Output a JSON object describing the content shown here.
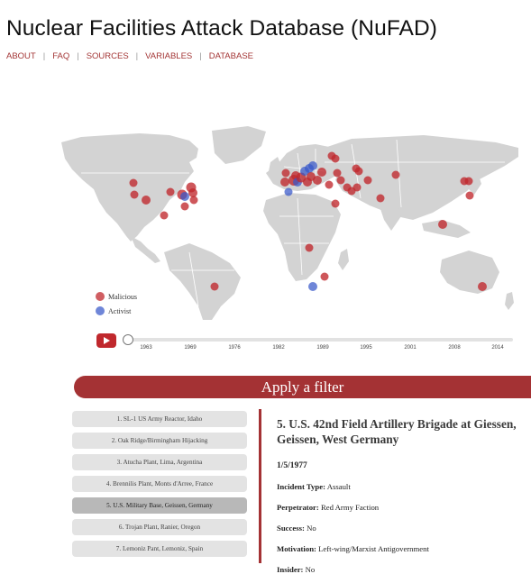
{
  "page": {
    "title": "Nuclear Facilities Attack Database (NuFAD)"
  },
  "nav": [
    "ABOUT",
    "FAQ",
    "SOURCES",
    "VARIABLES",
    "DATABASE"
  ],
  "legend": {
    "malicious": "Malicious",
    "activist": "Activist"
  },
  "colors": {
    "malicious": "#c0282d",
    "activist": "#3858c9",
    "accent": "#a43234"
  },
  "timeline": {
    "years": [
      "1963",
      "1969",
      "1976",
      "1982",
      "1989",
      "1995",
      "2001",
      "2008",
      "2014"
    ]
  },
  "filter": {
    "label": "Apply a filter"
  },
  "incidents": [
    "1. SL-1 US Army Reactor, Idaho",
    "2. Oak Ridge/Birmingham Hijacking",
    "3. Atucha Plant, Lima, Argentina",
    "4. Brennilis Plant, Monts d'Arree, France",
    "5. U.S. Military Base, Geissen, Germany",
    "6. Trojan Plant, Ranier, Oregon",
    "7. Lemoniz Pant, Lemoniz, Spain"
  ],
  "selected": {
    "heading": "5. U.S. 42nd Field Artillery Brigade at Giessen, Geissen, West Germany",
    "date": "1/5/1977",
    "incident_type_label": "Incident Type:",
    "incident_type": "Assault",
    "perpetrator_label": "Perpetrator:",
    "perpetrator": "Red Army Faction",
    "success_label": "Success:",
    "success": "No",
    "motivation_label": "Motivation:",
    "motivation": "Left-wing/Marxist Antigovernment",
    "insider_label": "Insider:",
    "insider": "No"
  }
}
